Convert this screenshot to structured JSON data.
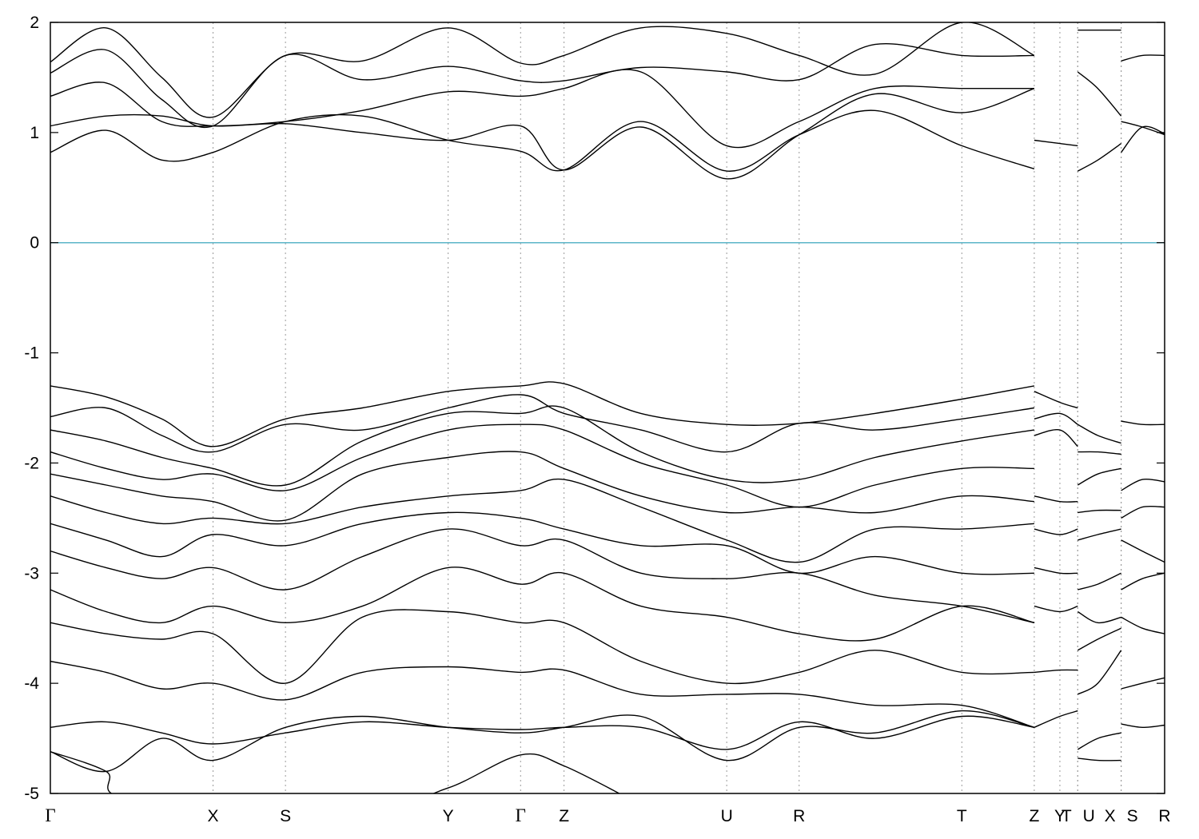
{
  "chart_data": {
    "type": "line",
    "title": "",
    "xlabel": "",
    "ylabel": "",
    "ylim": [
      -5,
      2
    ],
    "yticks": [
      -5,
      -4,
      -3,
      -2,
      -1,
      0,
      1,
      2
    ],
    "ytick_labels": [
      "-5",
      "-4",
      "-3",
      "-2",
      "-1",
      "0",
      "1",
      "2"
    ],
    "grid": "vertical dotted lines at k-points",
    "reference_line": {
      "y": 0,
      "color": "#5bb5c8"
    },
    "line_color": "#000000",
    "kpoints": [
      {
        "label": "Γ",
        "x": 0.0
      },
      {
        "label": "X",
        "x": 0.146
      },
      {
        "label": "S",
        "x": 0.211
      },
      {
        "label": "Y",
        "x": 0.357
      },
      {
        "label": "Γ",
        "x": 0.422
      },
      {
        "label": "Z",
        "x": 0.461
      },
      {
        "label": "U",
        "x": 0.607
      },
      {
        "label": "R",
        "x": 0.672
      },
      {
        "label": "T",
        "x": 0.818
      },
      {
        "label": "Z",
        "x": 0.883
      },
      {
        "label": "Y",
        "x": 0.906
      },
      {
        "label": "T",
        "x": 0.922
      },
      {
        "label": "U",
        "x": 0.922
      },
      {
        "label": "X",
        "x": 0.961
      },
      {
        "label": "S",
        "x": 0.961
      },
      {
        "label": "R",
        "x": 1.0
      }
    ],
    "series": [
      {
        "x": [
          0.0,
          0.05,
          0.1,
          0.146,
          0.211,
          0.28,
          0.357,
          0.422,
          0.461,
          0.53,
          0.607,
          0.672,
          0.74,
          0.818,
          0.883
        ],
        "y": [
          0.82,
          1.02,
          0.75,
          0.82,
          1.1,
          1.15,
          0.93,
          0.83,
          0.66,
          1.1,
          0.65,
          0.98,
          1.2,
          0.88,
          0.67
        ]
      },
      {
        "x": [
          0.0,
          0.05,
          0.1,
          0.146,
          0.211,
          0.28,
          0.357,
          0.422,
          0.461,
          0.53,
          0.607,
          0.672,
          0.74,
          0.818,
          0.883
        ],
        "y": [
          1.06,
          1.15,
          1.15,
          1.06,
          1.08,
          1.0,
          0.93,
          1.06,
          0.66,
          1.05,
          0.58,
          0.98,
          1.35,
          1.18,
          1.4
        ]
      },
      {
        "x": [
          0.0,
          0.05,
          0.1,
          0.146,
          0.211,
          0.28,
          0.357,
          0.422,
          0.461,
          0.53,
          0.607,
          0.672,
          0.74,
          0.818,
          0.883
        ],
        "y": [
          1.33,
          1.45,
          1.1,
          1.06,
          1.1,
          1.2,
          1.37,
          1.33,
          1.4,
          1.55,
          0.88,
          1.1,
          1.4,
          1.4,
          1.4
        ]
      },
      {
        "x": [
          0.0,
          0.05,
          0.1,
          0.146,
          0.211,
          0.28,
          0.357,
          0.422,
          0.461,
          0.53,
          0.607,
          0.672,
          0.74,
          0.818,
          0.883
        ],
        "y": [
          1.54,
          1.75,
          1.3,
          1.06,
          1.7,
          1.48,
          1.6,
          1.47,
          1.47,
          1.59,
          1.55,
          1.48,
          1.8,
          1.7,
          1.7
        ]
      },
      {
        "x": [
          0.0,
          0.05,
          0.1,
          0.146,
          0.211,
          0.28,
          0.357,
          0.422,
          0.461,
          0.53,
          0.607,
          0.672,
          0.74,
          0.818,
          0.883
        ],
        "y": [
          1.64,
          1.95,
          1.5,
          1.14,
          1.7,
          1.65,
          1.95,
          1.63,
          1.7,
          1.95,
          1.9,
          1.7,
          1.53,
          2.0,
          1.7
        ]
      },
      {
        "x": [
          0.0,
          0.05,
          0.1,
          0.146,
          0.211,
          0.28,
          0.357,
          0.422,
          0.461,
          0.53,
          0.607,
          0.672,
          0.74,
          0.818,
          0.883
        ],
        "y": [
          -1.3,
          -1.4,
          -1.6,
          -1.85,
          -1.6,
          -1.5,
          -1.35,
          -1.3,
          -1.28,
          -1.55,
          -1.65,
          -1.64,
          -1.55,
          -1.42,
          -1.3
        ]
      },
      {
        "x": [
          0.0,
          0.05,
          0.1,
          0.146,
          0.211,
          0.28,
          0.357,
          0.422,
          0.461,
          0.53,
          0.607,
          0.672,
          0.74,
          0.818,
          0.883
        ],
        "y": [
          -1.58,
          -1.5,
          -1.75,
          -1.9,
          -1.65,
          -1.7,
          -1.5,
          -1.38,
          -1.55,
          -1.7,
          -1.9,
          -1.64,
          -1.7,
          -1.6,
          -1.5
        ]
      },
      {
        "x": [
          0.0,
          0.05,
          0.1,
          0.146,
          0.211,
          0.28,
          0.357,
          0.422,
          0.461,
          0.53,
          0.607,
          0.672,
          0.74,
          0.818,
          0.883
        ],
        "y": [
          -1.7,
          -1.8,
          -1.95,
          -2.05,
          -2.2,
          -1.8,
          -1.55,
          -1.55,
          -1.5,
          -1.9,
          -2.15,
          -2.15,
          -1.95,
          -1.8,
          -1.7
        ]
      },
      {
        "x": [
          0.0,
          0.05,
          0.1,
          0.146,
          0.211,
          0.28,
          0.357,
          0.422,
          0.461,
          0.53,
          0.607,
          0.672,
          0.74,
          0.818,
          0.883
        ],
        "y": [
          -1.9,
          -2.05,
          -2.15,
          -2.1,
          -2.25,
          -1.95,
          -1.7,
          -1.65,
          -1.7,
          -2.0,
          -2.2,
          -2.4,
          -2.2,
          -2.05,
          -2.05
        ]
      },
      {
        "x": [
          0.0,
          0.05,
          0.1,
          0.146,
          0.211,
          0.28,
          0.357,
          0.422,
          0.461,
          0.53,
          0.607,
          0.672,
          0.74,
          0.818,
          0.883
        ],
        "y": [
          -2.1,
          -2.2,
          -2.3,
          -2.35,
          -2.52,
          -2.1,
          -1.95,
          -1.9,
          -2.05,
          -2.3,
          -2.45,
          -2.4,
          -2.45,
          -2.3,
          -2.35
        ]
      },
      {
        "x": [
          0.0,
          0.05,
          0.1,
          0.146,
          0.211,
          0.28,
          0.357,
          0.422,
          0.461,
          0.53,
          0.607,
          0.672,
          0.74,
          0.818,
          0.883
        ],
        "y": [
          -2.3,
          -2.45,
          -2.55,
          -2.5,
          -2.55,
          -2.4,
          -2.3,
          -2.25,
          -2.15,
          -2.4,
          -2.7,
          -2.9,
          -2.6,
          -2.6,
          -2.55
        ]
      },
      {
        "x": [
          0.0,
          0.05,
          0.1,
          0.146,
          0.211,
          0.28,
          0.357,
          0.422,
          0.461,
          0.53,
          0.607,
          0.672,
          0.74,
          0.818,
          0.883
        ],
        "y": [
          -2.55,
          -2.7,
          -2.85,
          -2.65,
          -2.75,
          -2.55,
          -2.45,
          -2.5,
          -2.6,
          -2.75,
          -2.75,
          -3.0,
          -2.85,
          -3.0,
          -3.0
        ]
      },
      {
        "x": [
          0.0,
          0.05,
          0.1,
          0.146,
          0.211,
          0.28,
          0.357,
          0.422,
          0.461,
          0.53,
          0.607,
          0.672,
          0.74,
          0.818,
          0.883
        ],
        "y": [
          -2.8,
          -2.95,
          -3.05,
          -2.95,
          -3.15,
          -2.85,
          -2.6,
          -2.75,
          -2.7,
          -3.0,
          -3.05,
          -3.0,
          -3.2,
          -3.3,
          -3.45
        ]
      },
      {
        "x": [
          0.0,
          0.05,
          0.1,
          0.146,
          0.211,
          0.28,
          0.357,
          0.422,
          0.461,
          0.53,
          0.607,
          0.672,
          0.74,
          0.818,
          0.883
        ],
        "y": [
          -3.15,
          -3.35,
          -3.45,
          -3.3,
          -3.45,
          -3.3,
          -2.95,
          -3.1,
          -3.0,
          -3.3,
          -3.4,
          -3.55,
          -3.6,
          -3.3,
          -3.45
        ]
      },
      {
        "x": [
          0.0,
          0.05,
          0.1,
          0.146,
          0.211,
          0.28,
          0.357,
          0.422,
          0.461,
          0.53,
          0.607,
          0.672,
          0.74,
          0.818,
          0.883
        ],
        "y": [
          -3.45,
          -3.55,
          -3.6,
          -3.55,
          -4.0,
          -3.4,
          -3.35,
          -3.45,
          -3.45,
          -3.8,
          -4.0,
          -3.9,
          -3.7,
          -3.9,
          -3.9
        ]
      },
      {
        "x": [
          0.0,
          0.05,
          0.1,
          0.146,
          0.211,
          0.28,
          0.357,
          0.422,
          0.461,
          0.53,
          0.607,
          0.672,
          0.74,
          0.818,
          0.883
        ],
        "y": [
          -3.8,
          -3.9,
          -4.05,
          -4.0,
          -4.15,
          -3.9,
          -3.85,
          -3.9,
          -3.88,
          -4.1,
          -4.1,
          -4.1,
          -4.2,
          -4.2,
          -4.4
        ]
      },
      {
        "x": [
          0.0,
          0.05,
          0.1,
          0.146,
          0.211,
          0.28,
          0.357,
          0.422,
          0.461,
          0.53,
          0.607,
          0.672,
          0.74,
          0.818,
          0.883
        ],
        "y": [
          -4.4,
          -4.35,
          -4.45,
          -4.55,
          -4.45,
          -4.35,
          -4.4,
          -4.42,
          -4.4,
          -4.4,
          -4.6,
          -4.35,
          -4.5,
          -4.3,
          -4.4
        ]
      },
      {
        "x": [
          0.0,
          0.05,
          0.1,
          0.146,
          0.211,
          0.28,
          0.357,
          0.422,
          0.461,
          0.53,
          0.607,
          0.672,
          0.74,
          0.818,
          0.883
        ],
        "y": [
          -4.62,
          -4.8,
          -4.5,
          -4.7,
          -4.4,
          -4.3,
          -4.4,
          -4.45,
          -4.4,
          -4.3,
          -4.7,
          -4.4,
          -4.45,
          -4.25,
          -4.4
        ]
      },
      {
        "x": [
          0.0,
          0.05,
          0.075,
          0.3,
          0.357,
          0.422,
          0.461,
          0.52
        ],
        "y": [
          -4.62,
          -4.8,
          -5.05,
          -5.05,
          -4.95,
          -4.65,
          -4.75,
          -5.05
        ]
      },
      {
        "x": [
          0.883,
          0.906,
          0.922
        ],
        "y": [
          0.93,
          0.9,
          0.88
        ]
      },
      {
        "x": [
          0.883,
          0.906,
          0.922
        ],
        "y": [
          -1.35,
          -1.45,
          -1.5
        ]
      },
      {
        "x": [
          0.883,
          0.906,
          0.922
        ],
        "y": [
          -1.6,
          -1.55,
          -1.65
        ]
      },
      {
        "x": [
          0.883,
          0.906,
          0.922
        ],
        "y": [
          -1.75,
          -1.7,
          -1.85
        ]
      },
      {
        "x": [
          0.883,
          0.906,
          0.922
        ],
        "y": [
          -2.3,
          -2.35,
          -2.35
        ]
      },
      {
        "x": [
          0.883,
          0.906,
          0.922
        ],
        "y": [
          -2.6,
          -2.65,
          -2.6
        ]
      },
      {
        "x": [
          0.883,
          0.906,
          0.922
        ],
        "y": [
          -2.95,
          -3.0,
          -3.0
        ]
      },
      {
        "x": [
          0.883,
          0.906,
          0.922
        ],
        "y": [
          -3.3,
          -3.35,
          -3.3
        ]
      },
      {
        "x": [
          0.883,
          0.906,
          0.922
        ],
        "y": [
          -3.9,
          -3.88,
          -3.88
        ]
      },
      {
        "x": [
          0.883,
          0.906,
          0.922
        ],
        "y": [
          -4.4,
          -4.3,
          -4.25
        ]
      },
      {
        "x": [
          0.922,
          0.94,
          0.961
        ],
        "y": [
          0.65,
          0.75,
          0.9
        ]
      },
      {
        "x": [
          0.922,
          0.94,
          0.961
        ],
        "y": [
          1.55,
          1.4,
          1.15
        ]
      },
      {
        "x": [
          0.922,
          0.94,
          0.961
        ],
        "y": [
          1.93,
          1.93,
          1.93
        ]
      },
      {
        "x": [
          0.922,
          0.94,
          0.961
        ],
        "y": [
          -1.65,
          -1.75,
          -1.82
        ]
      },
      {
        "x": [
          0.922,
          0.94,
          0.961
        ],
        "y": [
          -1.9,
          -1.9,
          -1.92
        ]
      },
      {
        "x": [
          0.922,
          0.94,
          0.961
        ],
        "y": [
          -2.2,
          -2.1,
          -2.05
        ]
      },
      {
        "x": [
          0.922,
          0.94,
          0.961
        ],
        "y": [
          -2.45,
          -2.43,
          -2.43
        ]
      },
      {
        "x": [
          0.922,
          0.94,
          0.961
        ],
        "y": [
          -2.7,
          -2.65,
          -2.6
        ]
      },
      {
        "x": [
          0.922,
          0.94,
          0.961
        ],
        "y": [
          -3.15,
          -3.1,
          -3.0
        ]
      },
      {
        "x": [
          0.922,
          0.94,
          0.961
        ],
        "y": [
          -3.35,
          -3.45,
          -3.4
        ]
      },
      {
        "x": [
          0.922,
          0.94,
          0.961
        ],
        "y": [
          -3.7,
          -3.6,
          -3.5
        ]
      },
      {
        "x": [
          0.922,
          0.94,
          0.961
        ],
        "y": [
          -4.1,
          -4.0,
          -3.7
        ]
      },
      {
        "x": [
          0.922,
          0.94,
          0.961
        ],
        "y": [
          -4.6,
          -4.5,
          -4.45
        ]
      },
      {
        "x": [
          0.922,
          0.94,
          0.961
        ],
        "y": [
          -4.68,
          -4.7,
          -4.7
        ]
      },
      {
        "x": [
          0.961,
          0.98,
          1.0
        ],
        "y": [
          0.82,
          1.05,
          0.99
        ]
      },
      {
        "x": [
          0.961,
          0.98,
          1.0
        ],
        "y": [
          1.1,
          1.05,
          0.98
        ]
      },
      {
        "x": [
          0.961,
          0.98,
          1.0
        ],
        "y": [
          1.65,
          1.7,
          1.7
        ]
      },
      {
        "x": [
          0.961,
          0.98,
          1.0
        ],
        "y": [
          -1.62,
          -1.65,
          -1.65
        ]
      },
      {
        "x": [
          0.961,
          0.98,
          1.0
        ],
        "y": [
          -2.25,
          -2.15,
          -2.17
        ]
      },
      {
        "x": [
          0.961,
          0.98,
          1.0
        ],
        "y": [
          -2.5,
          -2.4,
          -2.4
        ]
      },
      {
        "x": [
          0.961,
          0.98,
          1.0
        ],
        "y": [
          -2.7,
          -2.8,
          -2.9
        ]
      },
      {
        "x": [
          0.961,
          0.98,
          1.0
        ],
        "y": [
          -3.15,
          -3.05,
          -3.0
        ]
      },
      {
        "x": [
          0.961,
          0.98,
          1.0
        ],
        "y": [
          -3.4,
          -3.5,
          -3.55
        ]
      },
      {
        "x": [
          0.961,
          0.98,
          1.0
        ],
        "y": [
          -4.05,
          -4.0,
          -3.95
        ]
      },
      {
        "x": [
          0.961,
          0.98,
          1.0
        ],
        "y": [
          -4.37,
          -4.4,
          -4.38
        ]
      }
    ]
  }
}
